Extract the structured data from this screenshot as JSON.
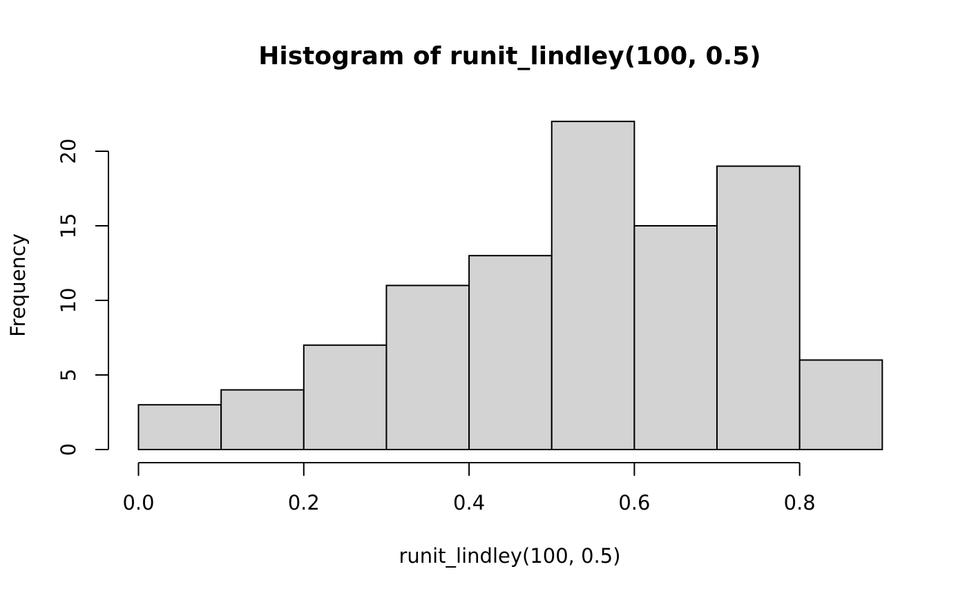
{
  "chart_data": {
    "type": "bar",
    "title": "Histogram of runit_lindley(100, 0.5)",
    "xlabel": "runit_lindley(100, 0.5)",
    "ylabel": "Frequency",
    "bins": [
      {
        "start": 0.0,
        "end": 0.1,
        "count": 3
      },
      {
        "start": 0.1,
        "end": 0.2,
        "count": 4
      },
      {
        "start": 0.2,
        "end": 0.3,
        "count": 7
      },
      {
        "start": 0.3,
        "end": 0.4,
        "count": 11
      },
      {
        "start": 0.4,
        "end": 0.5,
        "count": 13
      },
      {
        "start": 0.5,
        "end": 0.6,
        "count": 22
      },
      {
        "start": 0.6,
        "end": 0.7,
        "count": 15
      },
      {
        "start": 0.7,
        "end": 0.8,
        "count": 19
      },
      {
        "start": 0.8,
        "end": 0.9,
        "count": 6
      }
    ],
    "x_ticks": [
      0.0,
      0.2,
      0.4,
      0.6,
      0.8
    ],
    "x_tick_labels": [
      "0.0",
      "0.2",
      "0.4",
      "0.6",
      "0.8"
    ],
    "y_ticks": [
      0,
      5,
      10,
      15,
      20
    ],
    "y_tick_labels": [
      "0",
      "5",
      "10",
      "15",
      "20"
    ],
    "xlim": [
      0.0,
      0.9
    ],
    "ylim": [
      0,
      22
    ],
    "grid": false,
    "legend": "none",
    "colors": {
      "bar_fill": "#d3d3d3",
      "bar_stroke": "#000000"
    }
  }
}
